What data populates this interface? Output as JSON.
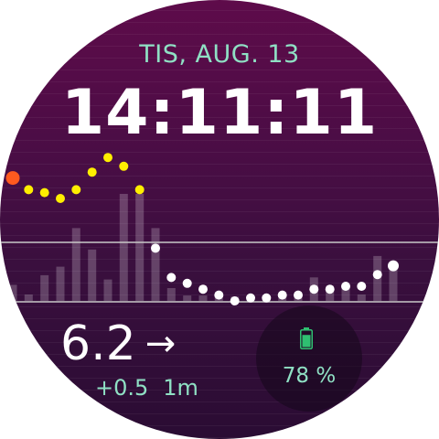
{
  "header": {
    "date": "TIS, AUG. 13",
    "time": "14:11:11"
  },
  "glucose": {
    "value": "6.2",
    "trend_arrow": "→",
    "delta": "+0.5",
    "age": "1m"
  },
  "battery": {
    "level_text": "78 %",
    "level_fraction": 0.78,
    "icon": "battery-icon"
  },
  "colors": {
    "accent": "#8fe0c4",
    "high_dot": "#ffee00",
    "in_range_dot": "#ffffff",
    "latest_alert_dot": "#ff5a1f",
    "battery_green": "#2fbf71"
  },
  "chart_data": {
    "type": "scatter",
    "threshold_lines": [
      "high",
      "low"
    ],
    "glucose_points": [
      {
        "level": 8.6,
        "state": "alert"
      },
      {
        "level": 8.2,
        "state": "high"
      },
      {
        "level": 8.1,
        "state": "high"
      },
      {
        "level": 7.9,
        "state": "high"
      },
      {
        "level": 8.2,
        "state": "high"
      },
      {
        "level": 8.8,
        "state": "high"
      },
      {
        "level": 9.3,
        "state": "high"
      },
      {
        "level": 9.0,
        "state": "high"
      },
      {
        "level": 8.2,
        "state": "high"
      },
      {
        "level": 6.2,
        "state": "normal"
      },
      {
        "level": 5.2,
        "state": "normal"
      },
      {
        "level": 5.0,
        "state": "normal"
      },
      {
        "level": 4.8,
        "state": "normal"
      },
      {
        "level": 4.6,
        "state": "normal"
      },
      {
        "level": 4.4,
        "state": "normal"
      },
      {
        "level": 4.5,
        "state": "normal"
      },
      {
        "level": 4.5,
        "state": "normal"
      },
      {
        "level": 4.6,
        "state": "normal"
      },
      {
        "level": 4.6,
        "state": "normal"
      },
      {
        "level": 4.8,
        "state": "normal"
      },
      {
        "level": 4.8,
        "state": "normal"
      },
      {
        "level": 4.9,
        "state": "normal"
      },
      {
        "level": 4.9,
        "state": "normal"
      },
      {
        "level": 5.3,
        "state": "normal"
      },
      {
        "level": 5.6,
        "state": "normal"
      }
    ],
    "activity_bars": [
      0.15,
      0.06,
      0.24,
      0.32,
      0.68,
      0.48,
      0.2,
      1.0,
      1.0,
      0.68,
      0.12,
      0.05,
      0.05,
      0.04,
      0.04,
      0.04,
      0.05,
      0.05,
      0.04,
      0.22,
      0.1,
      0.12,
      0.06,
      0.42,
      0.36
    ]
  }
}
